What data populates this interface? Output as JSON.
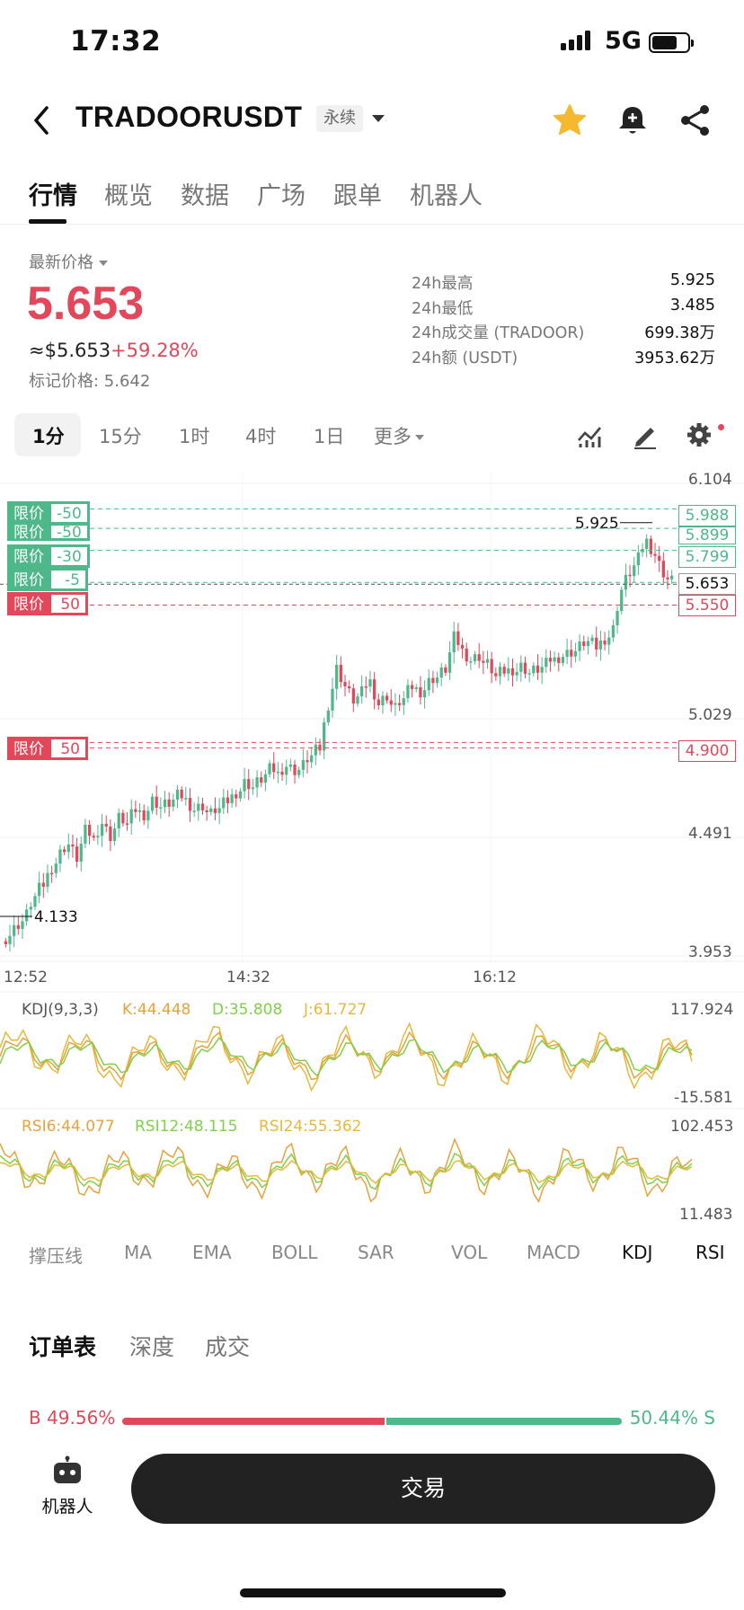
{
  "status": {
    "time": "17:32",
    "network": "5G"
  },
  "header": {
    "pair": "TRADOORUSDT",
    "contract_type": "永续"
  },
  "tabs": [
    "行情",
    "概览",
    "数据",
    "广场",
    "跟单",
    "机器人"
  ],
  "price": {
    "latest_label": "最新价格",
    "last": "5.653",
    "usd": "≈$5.653",
    "change": "+59.28%",
    "mark": "标记价格: 5.642"
  },
  "stats": [
    {
      "label": "24h最高",
      "value": "5.925"
    },
    {
      "label": "24h最低",
      "value": "3.485"
    },
    {
      "label": "24h成交量 (TRADOOR)",
      "value": "699.38万"
    },
    {
      "label": "24h额 (USDT)",
      "value": "3953.62万"
    }
  ],
  "timeframes": [
    "1分",
    "15分",
    "1时",
    "4时",
    "1日",
    "更多"
  ],
  "chart_data": {
    "type": "candlestick",
    "price_axis": [
      "6.104",
      "5.029",
      "4.491",
      "3.953"
    ],
    "time_axis": [
      "12:52",
      "14:32",
      "16:12"
    ],
    "high_marker": "5.925",
    "low_marker": "4.133",
    "current_price": "5.653",
    "orders": [
      {
        "label": "限价",
        "qty": "-50",
        "price": "5.988",
        "side": "buy"
      },
      {
        "label": "限价",
        "qty": "-50",
        "price": "5.899",
        "side": "buy"
      },
      {
        "label": "限价",
        "qty": "-30",
        "price": "5.799",
        "side": "buy"
      },
      {
        "label": "限价",
        "qty": "-5",
        "price": "5.653",
        "side": "buy"
      },
      {
        "label": "限价",
        "qty": "50",
        "price": "5.550",
        "side": "sell"
      },
      {
        "label": "限价",
        "qty": "50",
        "price": "4.900",
        "side": "sell"
      }
    ],
    "close_series": [
      4.05,
      4.1,
      4.14,
      4.22,
      4.28,
      4.36,
      4.42,
      4.46,
      4.4,
      4.52,
      4.48,
      4.56,
      4.5,
      4.58,
      4.55,
      4.62,
      4.6,
      4.66,
      4.63,
      4.65,
      4.68,
      4.66,
      4.62,
      4.64,
      4.6,
      4.62,
      4.66,
      4.7,
      4.74,
      4.72,
      4.76,
      4.8,
      4.78,
      4.82,
      4.8,
      4.82,
      4.86,
      4.9,
      5.1,
      5.26,
      5.18,
      5.12,
      5.15,
      5.2,
      5.1,
      5.14,
      5.08,
      5.12,
      5.18,
      5.16,
      5.2,
      5.22,
      5.26,
      5.4,
      5.34,
      5.3,
      5.32,
      5.28,
      5.22,
      5.25,
      5.26,
      5.27,
      5.24,
      5.26,
      5.28,
      5.3,
      5.32,
      5.34,
      5.36,
      5.38,
      5.36,
      5.4,
      5.44,
      5.62,
      5.7,
      5.76,
      5.84,
      5.78,
      5.7,
      5.66
    ],
    "kdj": {
      "label": "KDJ(9,3,3)",
      "k": "K:44.448",
      "d": "D:35.808",
      "j": "J:61.727",
      "max": "117.924",
      "min": "-15.581"
    },
    "rsi": {
      "rsi6": "RSI6:44.077",
      "rsi12": "RSI12:48.115",
      "rsi24": "RSI24:55.362",
      "max": "102.453",
      "min": "11.483"
    }
  },
  "indicators": [
    "撑压线",
    "MA",
    "EMA",
    "BOLL",
    "SAR",
    "VOL",
    "MACD",
    "KDJ",
    "RSI"
  ],
  "orderbook_tabs": [
    "订单表",
    "深度",
    "成交"
  ],
  "ratio": {
    "buy": "B 49.56%",
    "sell": "50.44% S",
    "buy_pct": 49.56
  },
  "bottom": {
    "robot_label": "机器人",
    "trade_label": "交易"
  },
  "colors": {
    "up": "#4fb88b",
    "down": "#e2475a",
    "k": "#e8a23c",
    "d": "#7fd147",
    "j": "#e8b83c"
  }
}
